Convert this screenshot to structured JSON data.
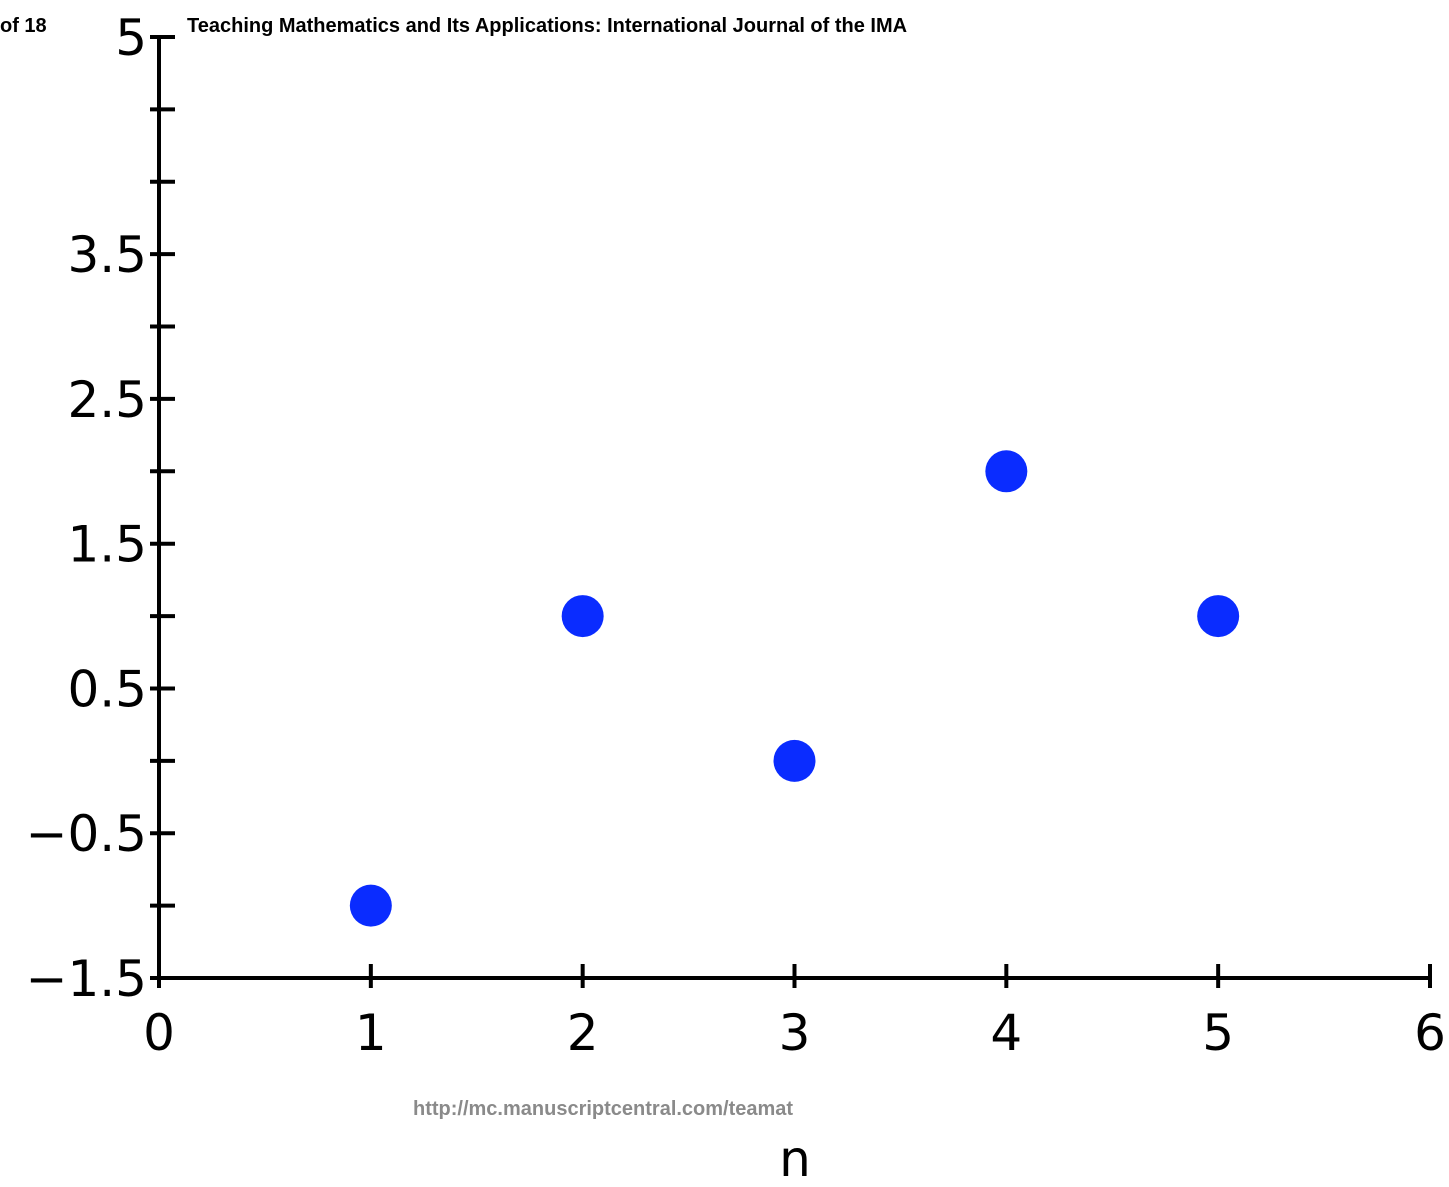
{
  "header": {
    "page_number": "of 18",
    "journal_title": "Teaching Mathematics and Its Applications: International Journal of the IMA"
  },
  "footer": {
    "url": "http://mc.manuscriptcentral.com/teamat"
  },
  "colors": {
    "point": "#0a2cff",
    "axis": "#000000",
    "footer_text": "#8a8a8a"
  },
  "chart_data": {
    "type": "scatter",
    "xlabel": "n",
    "ylabel": "",
    "xlim": [
      0,
      6
    ],
    "ylim": [
      -1.5,
      5
    ],
    "x_ticks": [
      0,
      1,
      2,
      3,
      4,
      5,
      6
    ],
    "x_tick_labels": [
      "0",
      "1",
      "2",
      "3",
      "4",
      "5",
      "6"
    ],
    "y_ticks": [
      -1.5,
      -1,
      -0.5,
      0,
      0.5,
      1,
      1.5,
      2,
      2.5,
      3,
      3.5,
      4,
      4.5,
      5
    ],
    "y_tick_labels": [
      {
        "value": -1.5,
        "label": "−1.5"
      },
      {
        "value": -0.5,
        "label": "−0.5"
      },
      {
        "value": 0.5,
        "label": "0.5"
      },
      {
        "value": 1.5,
        "label": "1.5"
      },
      {
        "value": 2.5,
        "label": "2.5"
      },
      {
        "value": 3.5,
        "label": "3.5"
      },
      {
        "value": 5,
        "label": "5"
      }
    ],
    "grid": false,
    "series": [
      {
        "x": [
          1,
          2,
          3,
          4,
          5
        ],
        "y": [
          -1,
          1,
          0,
          2,
          1
        ]
      }
    ]
  }
}
